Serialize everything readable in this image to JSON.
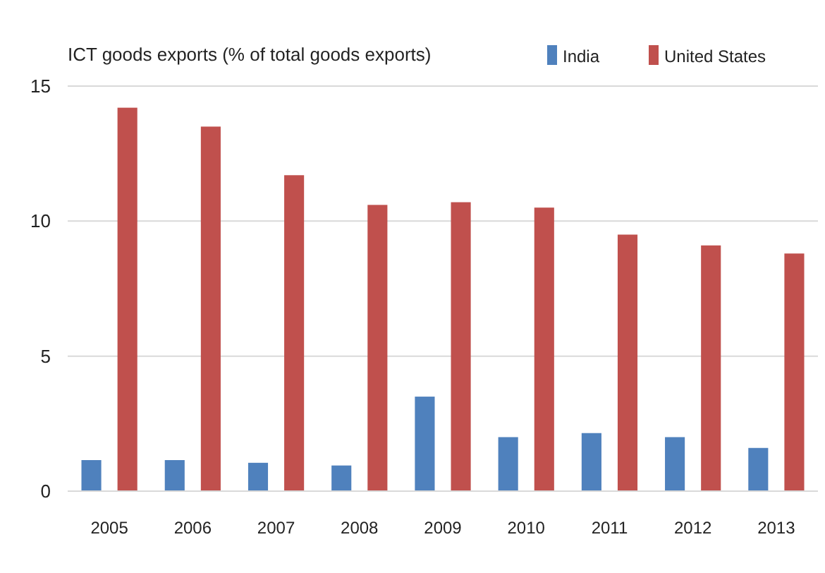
{
  "chart_data": {
    "type": "bar",
    "title": "ICT goods exports (% of total goods exports)",
    "categories": [
      "2005",
      "2006",
      "2007",
      "2008",
      "2009",
      "2010",
      "2011",
      "2012",
      "2013"
    ],
    "series": [
      {
        "name": "India",
        "color": "#4f81bd",
        "values": [
          1.15,
          1.15,
          1.05,
          0.95,
          3.5,
          2.0,
          2.15,
          2.0,
          1.6
        ]
      },
      {
        "name": "United States",
        "color": "#c0504d",
        "values": [
          14.2,
          13.5,
          11.7,
          10.6,
          10.7,
          10.5,
          9.5,
          9.1,
          8.8
        ]
      }
    ],
    "ylim": [
      0,
      15
    ],
    "yticks": [
      0,
      5,
      10,
      15
    ],
    "grid": "y",
    "legend": "top right"
  }
}
